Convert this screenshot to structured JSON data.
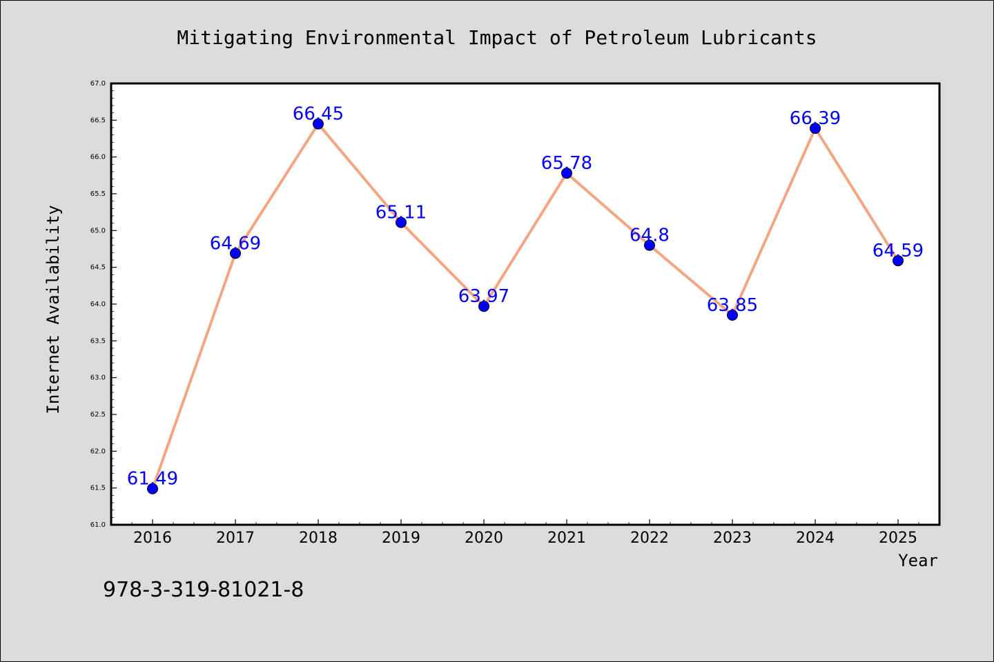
{
  "chart_data": {
    "type": "line",
    "title": "Mitigating Environmental Impact of Petroleum Lubricants",
    "xlabel": "Year",
    "ylabel": "Internet Availability",
    "categories": [
      "2016",
      "2017",
      "2018",
      "2019",
      "2020",
      "2021",
      "2022",
      "2023",
      "2024",
      "2025"
    ],
    "values": [
      61.49,
      64.69,
      66.45,
      65.11,
      63.97,
      65.78,
      64.8,
      63.85,
      66.39,
      64.59
    ],
    "data_labels": [
      "61.49",
      "64.69",
      "66.45",
      "65.11",
      "63.97",
      "65.78",
      "64.8",
      "63.85",
      "66.39",
      "64.59"
    ],
    "ylim": [
      61.0,
      67.0
    ],
    "yticks": [
      "61.0",
      "61.5",
      "62.0",
      "62.5",
      "63.0",
      "63.5",
      "64.0",
      "64.5",
      "65.0",
      "65.5",
      "66.0",
      "66.5",
      "67.0"
    ],
    "grid": false,
    "legend": "none",
    "colors": {
      "line": "#f4a582",
      "marker": "#0000ff",
      "label": "#0000ff",
      "plot_background": "#ffffff",
      "figure_background": "#dcdcdc"
    }
  },
  "footer": {
    "isbn": "978-3-319-81021-8"
  }
}
